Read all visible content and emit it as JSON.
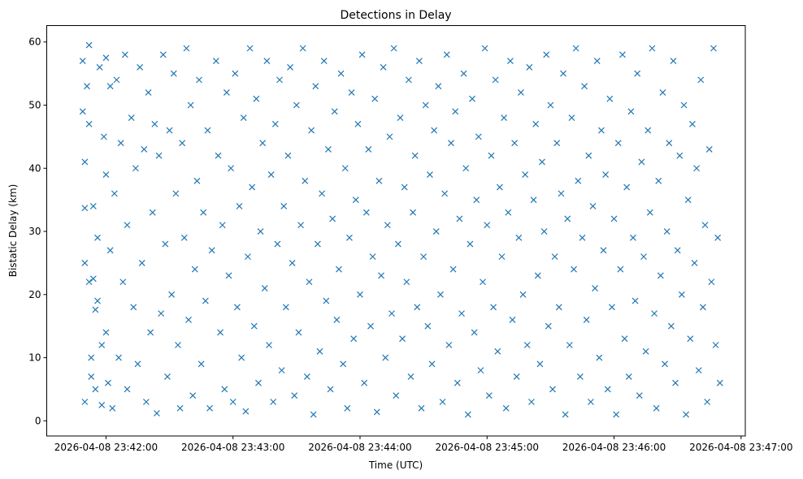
{
  "chart_data": {
    "type": "scatter",
    "title": "Detections in Delay",
    "xlabel": "Time (UTC)",
    "ylabel": "Bistatic Delay (km)",
    "x_reference": "2026-04-08 23:42:00",
    "x_units": "seconds relative to x_reference",
    "xlim": [
      -28,
      302
    ],
    "ylim": [
      -2.4,
      62.6
    ],
    "x_ticks": [
      0,
      60,
      120,
      180,
      240,
      300
    ],
    "x_tick_labels": [
      "2026-04-08 23:42:00",
      "2026-04-08 23:43:00",
      "2026-04-08 23:44:00",
      "2026-04-08 23:45:00",
      "2026-04-08 23:46:00",
      "2026-04-08 23:47:00"
    ],
    "y_ticks": [
      0,
      10,
      20,
      30,
      40,
      50,
      60
    ],
    "y_tick_labels": [
      "0",
      "10",
      "20",
      "30",
      "40",
      "50",
      "60"
    ],
    "marker": "x",
    "color": "#1f77b4",
    "grid": false,
    "series": [
      {
        "name": "detections",
        "points": [
          [
            -11,
            57
          ],
          [
            -11,
            49
          ],
          [
            -10,
            41
          ],
          [
            -10,
            33.7
          ],
          [
            -10,
            25
          ],
          [
            -10,
            3
          ],
          [
            -9,
            53
          ],
          [
            -8,
            59.5
          ],
          [
            -8,
            47
          ],
          [
            -8,
            22
          ],
          [
            -7,
            10
          ],
          [
            -7,
            7
          ],
          [
            -6,
            34
          ],
          [
            -6,
            22.5
          ],
          [
            -5,
            5
          ],
          [
            -5,
            17.6
          ],
          [
            -4,
            29
          ],
          [
            -4,
            19
          ],
          [
            -3,
            56
          ],
          [
            -2,
            12
          ],
          [
            -2,
            2.5
          ],
          [
            -1,
            45
          ],
          [
            0,
            57.5
          ],
          [
            0,
            39
          ],
          [
            0,
            14
          ],
          [
            1,
            6
          ],
          [
            2,
            53
          ],
          [
            2,
            27
          ],
          [
            3,
            2
          ],
          [
            4,
            36
          ],
          [
            5,
            54
          ],
          [
            6,
            10
          ],
          [
            7,
            44
          ],
          [
            8,
            22
          ],
          [
            9,
            58
          ],
          [
            10,
            31
          ],
          [
            10,
            5
          ],
          [
            12,
            48
          ],
          [
            13,
            18
          ],
          [
            14,
            40
          ],
          [
            15,
            9
          ],
          [
            16,
            56
          ],
          [
            17,
            25
          ],
          [
            18,
            43
          ],
          [
            19,
            3
          ],
          [
            20,
            52
          ],
          [
            21,
            14
          ],
          [
            22,
            33
          ],
          [
            23,
            47
          ],
          [
            24,
            1.2
          ],
          [
            25,
            42
          ],
          [
            26,
            17
          ],
          [
            27,
            58
          ],
          [
            28,
            28
          ],
          [
            29,
            7
          ],
          [
            30,
            46
          ],
          [
            31,
            20
          ],
          [
            32,
            55
          ],
          [
            33,
            36
          ],
          [
            34,
            12
          ],
          [
            35,
            2
          ],
          [
            36,
            44
          ],
          [
            37,
            29
          ],
          [
            38,
            59
          ],
          [
            39,
            16
          ],
          [
            40,
            50
          ],
          [
            41,
            4
          ],
          [
            42,
            24
          ],
          [
            43,
            38
          ],
          [
            44,
            54
          ],
          [
            45,
            9
          ],
          [
            46,
            33
          ],
          [
            47,
            19
          ],
          [
            48,
            46
          ],
          [
            49,
            2
          ],
          [
            50,
            27
          ],
          [
            52,
            57
          ],
          [
            53,
            42
          ],
          [
            54,
            14
          ],
          [
            55,
            31
          ],
          [
            56,
            5
          ],
          [
            57,
            52
          ],
          [
            58,
            23
          ],
          [
            59,
            40
          ],
          [
            60,
            3
          ],
          [
            61,
            55
          ],
          [
            62,
            18
          ],
          [
            63,
            34
          ],
          [
            64,
            10
          ],
          [
            65,
            48
          ],
          [
            66,
            1.5
          ],
          [
            67,
            26
          ],
          [
            68,
            59
          ],
          [
            69,
            37
          ],
          [
            70,
            15
          ],
          [
            71,
            51
          ],
          [
            72,
            6
          ],
          [
            73,
            30
          ],
          [
            74,
            44
          ],
          [
            75,
            21
          ],
          [
            76,
            57
          ],
          [
            77,
            12
          ],
          [
            78,
            39
          ],
          [
            79,
            3
          ],
          [
            80,
            47
          ],
          [
            81,
            28
          ],
          [
            82,
            54
          ],
          [
            83,
            8
          ],
          [
            84,
            34
          ],
          [
            85,
            18
          ],
          [
            86,
            42
          ],
          [
            87,
            56
          ],
          [
            88,
            25
          ],
          [
            89,
            4
          ],
          [
            90,
            50
          ],
          [
            91,
            14
          ],
          [
            92,
            31
          ],
          [
            93,
            59
          ],
          [
            94,
            38
          ],
          [
            95,
            7
          ],
          [
            96,
            22
          ],
          [
            97,
            46
          ],
          [
            98,
            1
          ],
          [
            99,
            53
          ],
          [
            100,
            28
          ],
          [
            101,
            11
          ],
          [
            102,
            36
          ],
          [
            103,
            57
          ],
          [
            104,
            19
          ],
          [
            105,
            43
          ],
          [
            106,
            5
          ],
          [
            107,
            32
          ],
          [
            108,
            49
          ],
          [
            109,
            16
          ],
          [
            110,
            24
          ],
          [
            111,
            55
          ],
          [
            112,
            9
          ],
          [
            113,
            40
          ],
          [
            114,
            2
          ],
          [
            115,
            29
          ],
          [
            116,
            52
          ],
          [
            117,
            13
          ],
          [
            118,
            35
          ],
          [
            119,
            47
          ],
          [
            120,
            20
          ],
          [
            121,
            58
          ],
          [
            122,
            6
          ],
          [
            123,
            33
          ],
          [
            124,
            43
          ],
          [
            125,
            15
          ],
          [
            126,
            26
          ],
          [
            127,
            51
          ],
          [
            128,
            1.4
          ],
          [
            129,
            38
          ],
          [
            130,
            23
          ],
          [
            131,
            56
          ],
          [
            132,
            10
          ],
          [
            133,
            31
          ],
          [
            134,
            45
          ],
          [
            135,
            17
          ],
          [
            136,
            59
          ],
          [
            137,
            4
          ],
          [
            138,
            28
          ],
          [
            139,
            48
          ],
          [
            140,
            13
          ],
          [
            141,
            37
          ],
          [
            142,
            22
          ],
          [
            143,
            54
          ],
          [
            144,
            7
          ],
          [
            145,
            33
          ],
          [
            146,
            42
          ],
          [
            147,
            18
          ],
          [
            148,
            57
          ],
          [
            149,
            2
          ],
          [
            150,
            26
          ],
          [
            151,
            50
          ],
          [
            152,
            15
          ],
          [
            153,
            39
          ],
          [
            154,
            9
          ],
          [
            155,
            46
          ],
          [
            156,
            30
          ],
          [
            157,
            53
          ],
          [
            158,
            20
          ],
          [
            159,
            3
          ],
          [
            160,
            36
          ],
          [
            161,
            58
          ],
          [
            162,
            12
          ],
          [
            163,
            44
          ],
          [
            164,
            24
          ],
          [
            165,
            49
          ],
          [
            166,
            6
          ],
          [
            167,
            32
          ],
          [
            168,
            17
          ],
          [
            169,
            55
          ],
          [
            170,
            40
          ],
          [
            171,
            1
          ],
          [
            172,
            28
          ],
          [
            173,
            51
          ],
          [
            174,
            14
          ],
          [
            175,
            35
          ],
          [
            176,
            45
          ],
          [
            177,
            8
          ],
          [
            178,
            22
          ],
          [
            179,
            59
          ],
          [
            180,
            31
          ],
          [
            181,
            4
          ],
          [
            182,
            42
          ],
          [
            183,
            18
          ],
          [
            184,
            54
          ],
          [
            185,
            11
          ],
          [
            186,
            37
          ],
          [
            187,
            26
          ],
          [
            188,
            48
          ],
          [
            189,
            2
          ],
          [
            190,
            33
          ],
          [
            191,
            57
          ],
          [
            192,
            16
          ],
          [
            193,
            44
          ],
          [
            194,
            7
          ],
          [
            195,
            29
          ],
          [
            196,
            52
          ],
          [
            197,
            20
          ],
          [
            198,
            39
          ],
          [
            199,
            12
          ],
          [
            200,
            56
          ],
          [
            201,
            3
          ],
          [
            202,
            35
          ],
          [
            203,
            47
          ],
          [
            204,
            23
          ],
          [
            205,
            9
          ],
          [
            206,
            41
          ],
          [
            207,
            30
          ],
          [
            208,
            58
          ],
          [
            209,
            15
          ],
          [
            210,
            50
          ],
          [
            211,
            5
          ],
          [
            212,
            26
          ],
          [
            213,
            44
          ],
          [
            214,
            18
          ],
          [
            215,
            36
          ],
          [
            216,
            55
          ],
          [
            217,
            1
          ],
          [
            218,
            32
          ],
          [
            219,
            12
          ],
          [
            220,
            48
          ],
          [
            221,
            24
          ],
          [
            222,
            59
          ],
          [
            223,
            38
          ],
          [
            224,
            7
          ],
          [
            225,
            29
          ],
          [
            226,
            53
          ],
          [
            227,
            16
          ],
          [
            228,
            42
          ],
          [
            229,
            3
          ],
          [
            230,
            34
          ],
          [
            231,
            21
          ],
          [
            232,
            57
          ],
          [
            233,
            10
          ],
          [
            234,
            46
          ],
          [
            235,
            27
          ],
          [
            236,
            39
          ],
          [
            237,
            5
          ],
          [
            238,
            51
          ],
          [
            239,
            18
          ],
          [
            240,
            32
          ],
          [
            241,
            1
          ],
          [
            242,
            44
          ],
          [
            243,
            24
          ],
          [
            244,
            58
          ],
          [
            245,
            13
          ],
          [
            246,
            37
          ],
          [
            247,
            7
          ],
          [
            248,
            49
          ],
          [
            249,
            29
          ],
          [
            250,
            19
          ],
          [
            251,
            55
          ],
          [
            252,
            4
          ],
          [
            253,
            41
          ],
          [
            254,
            26
          ],
          [
            255,
            11
          ],
          [
            256,
            46
          ],
          [
            257,
            33
          ],
          [
            258,
            59
          ],
          [
            259,
            17
          ],
          [
            260,
            2
          ],
          [
            261,
            38
          ],
          [
            262,
            23
          ],
          [
            263,
            52
          ],
          [
            264,
            9
          ],
          [
            265,
            30
          ],
          [
            266,
            44
          ],
          [
            267,
            15
          ],
          [
            268,
            57
          ],
          [
            269,
            6
          ],
          [
            270,
            27
          ],
          [
            271,
            42
          ],
          [
            272,
            20
          ],
          [
            273,
            50
          ],
          [
            274,
            1
          ],
          [
            275,
            35
          ],
          [
            276,
            13
          ],
          [
            277,
            47
          ],
          [
            278,
            25
          ],
          [
            279,
            40
          ],
          [
            280,
            8
          ],
          [
            281,
            54
          ],
          [
            282,
            18
          ],
          [
            283,
            31
          ],
          [
            284,
            3
          ],
          [
            285,
            43
          ],
          [
            286,
            22
          ],
          [
            287,
            59
          ],
          [
            288,
            12
          ],
          [
            289,
            29
          ],
          [
            290,
            6
          ]
        ]
      }
    ]
  }
}
